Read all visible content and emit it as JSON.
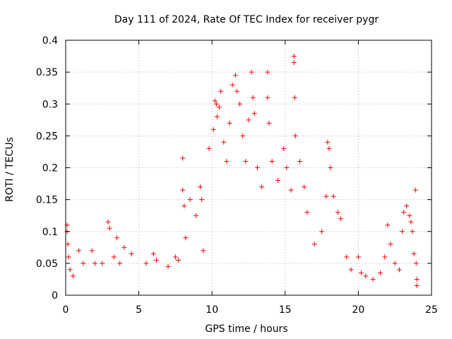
{
  "chart_data": {
    "type": "scatter",
    "title": "Day 111 of 2024, Rate Of TEC Index for receiver pygr",
    "xlabel": "GPS time / hours",
    "ylabel": "ROTI / TECUs",
    "xlim": [
      0,
      25
    ],
    "ylim": [
      0,
      0.4
    ],
    "xticks": [
      0,
      5,
      10,
      15,
      20,
      25
    ],
    "xtick_labels": [
      "0",
      "5",
      "10",
      "15",
      "20",
      "25"
    ],
    "yticks": [
      0,
      0.05,
      0.1,
      0.15,
      0.2,
      0.25,
      0.3,
      0.35,
      0.4
    ],
    "ytick_labels": [
      "0",
      "0.05",
      "0.1",
      "0.15",
      "0.2",
      "0.25",
      "0.3",
      "0.35",
      "0.4"
    ],
    "grid": true,
    "marker": "plus",
    "series_color": "#ff0000",
    "points": [
      [
        0.1,
        0.11
      ],
      [
        0.1,
        0.1
      ],
      [
        0.15,
        0.08
      ],
      [
        0.2,
        0.06
      ],
      [
        0.3,
        0.04
      ],
      [
        0.5,
        0.03
      ],
      [
        0.9,
        0.07
      ],
      [
        1.2,
        0.05
      ],
      [
        1.8,
        0.07
      ],
      [
        2.0,
        0.05
      ],
      [
        2.5,
        0.05
      ],
      [
        2.9,
        0.115
      ],
      [
        3.0,
        0.105
      ],
      [
        3.3,
        0.06
      ],
      [
        3.5,
        0.09
      ],
      [
        3.7,
        0.05
      ],
      [
        4.0,
        0.075
      ],
      [
        4.5,
        0.065
      ],
      [
        5.5,
        0.05
      ],
      [
        6.0,
        0.065
      ],
      [
        6.2,
        0.055
      ],
      [
        7.0,
        0.045
      ],
      [
        7.5,
        0.06
      ],
      [
        7.7,
        0.055
      ],
      [
        8.0,
        0.215
      ],
      [
        8.0,
        0.165
      ],
      [
        8.1,
        0.14
      ],
      [
        8.2,
        0.09
      ],
      [
        8.5,
        0.15
      ],
      [
        8.9,
        0.125
      ],
      [
        9.2,
        0.17
      ],
      [
        9.3,
        0.15
      ],
      [
        9.4,
        0.07
      ],
      [
        9.8,
        0.23
      ],
      [
        10.1,
        0.26
      ],
      [
        10.2,
        0.305
      ],
      [
        10.3,
        0.3
      ],
      [
        10.35,
        0.28
      ],
      [
        10.5,
        0.295
      ],
      [
        10.6,
        0.32
      ],
      [
        10.8,
        0.24
      ],
      [
        11.0,
        0.21
      ],
      [
        11.2,
        0.27
      ],
      [
        11.4,
        0.33
      ],
      [
        11.6,
        0.345
      ],
      [
        11.7,
        0.32
      ],
      [
        11.9,
        0.3
      ],
      [
        12.1,
        0.25
      ],
      [
        12.3,
        0.21
      ],
      [
        12.5,
        0.275
      ],
      [
        12.7,
        0.35
      ],
      [
        12.8,
        0.31
      ],
      [
        12.9,
        0.285
      ],
      [
        13.1,
        0.2
      ],
      [
        13.4,
        0.17
      ],
      [
        13.8,
        0.35
      ],
      [
        13.8,
        0.31
      ],
      [
        13.9,
        0.27
      ],
      [
        14.1,
        0.21
      ],
      [
        14.5,
        0.18
      ],
      [
        14.9,
        0.23
      ],
      [
        15.1,
        0.2
      ],
      [
        15.4,
        0.165
      ],
      [
        15.6,
        0.375
      ],
      [
        15.6,
        0.365
      ],
      [
        15.65,
        0.31
      ],
      [
        15.7,
        0.25
      ],
      [
        16.0,
        0.21
      ],
      [
        16.3,
        0.17
      ],
      [
        16.5,
        0.13
      ],
      [
        17.0,
        0.08
      ],
      [
        17.5,
        0.1
      ],
      [
        17.8,
        0.155
      ],
      [
        17.9,
        0.24
      ],
      [
        18.0,
        0.23
      ],
      [
        18.1,
        0.2
      ],
      [
        18.3,
        0.155
      ],
      [
        18.6,
        0.13
      ],
      [
        18.8,
        0.12
      ],
      [
        19.2,
        0.06
      ],
      [
        19.5,
        0.04
      ],
      [
        20.0,
        0.06
      ],
      [
        20.2,
        0.035
      ],
      [
        20.5,
        0.03
      ],
      [
        21.0,
        0.025
      ],
      [
        21.5,
        0.035
      ],
      [
        21.8,
        0.06
      ],
      [
        22.0,
        0.11
      ],
      [
        22.2,
        0.08
      ],
      [
        22.5,
        0.05
      ],
      [
        22.8,
        0.04
      ],
      [
        23.0,
        0.1
      ],
      [
        23.1,
        0.13
      ],
      [
        23.3,
        0.14
      ],
      [
        23.5,
        0.125
      ],
      [
        23.6,
        0.115
      ],
      [
        23.7,
        0.1
      ],
      [
        23.8,
        0.065
      ],
      [
        23.9,
        0.165
      ],
      [
        23.95,
        0.05
      ],
      [
        24.0,
        0.025
      ],
      [
        24.0,
        0.015
      ]
    ]
  }
}
